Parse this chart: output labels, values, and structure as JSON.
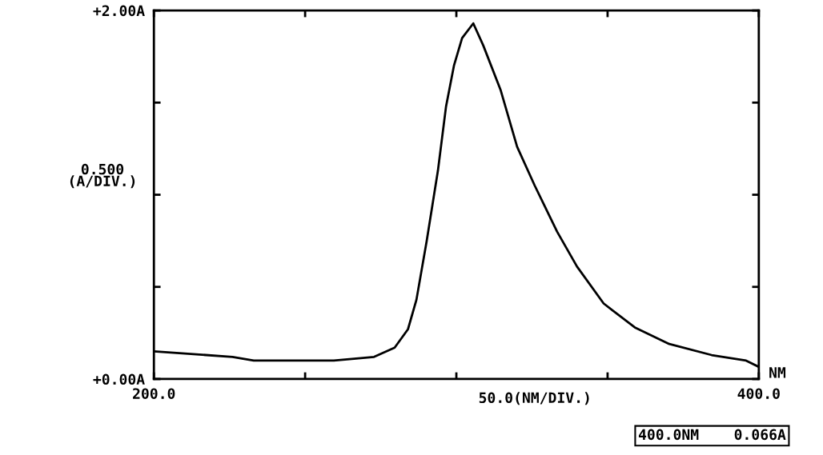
{
  "chart_data": {
    "type": "line",
    "xlabel": "50.0(NM/DIV.)",
    "ylabel": "0.500\n(A/DIV.)",
    "annotations": [
      "NM",
      "400.0NM    0.066A"
    ],
    "x": [
      200,
      226,
      233,
      259.5,
      272.8,
      279.6,
      284,
      286.8,
      290.2,
      293.9,
      296.6,
      299.2,
      301.9,
      305.6,
      308.9,
      314.6,
      320.1,
      325.9,
      333.3,
      339.9,
      348.7,
      359,
      370.4,
      384.4,
      395.8,
      400
    ],
    "series": [
      {
        "color": "#000000",
        "values": [
          0.15,
          0.12,
          0.1,
          0.1,
          0.12,
          0.17,
          0.27,
          0.43,
          0.75,
          1.13,
          1.48,
          1.7,
          1.85,
          1.93,
          1.81,
          1.57,
          1.26,
          1.05,
          0.8,
          0.61,
          0.41,
          0.28,
          0.19,
          0.13,
          0.1,
          0.066
        ]
      }
    ],
    "xlim": [
      200,
      400
    ],
    "xticks": [
      {
        "value": 200,
        "label": "200.0"
      },
      {
        "value": 250,
        "label": null
      },
      {
        "value": 300,
        "label": null
      },
      {
        "value": 350,
        "label": null
      },
      {
        "value": 400,
        "label": "400.0"
      }
    ],
    "ylim": [
      0,
      2
    ],
    "yticks": [
      {
        "value": 0,
        "label": "+0.00A"
      },
      {
        "value": 0.5,
        "label": null
      },
      {
        "value": 1,
        "label": null
      },
      {
        "value": 1.5,
        "label": null
      },
      {
        "value": 2,
        "label": "+2.00A"
      }
    ],
    "grid": false,
    "legend": false,
    "marker": "none",
    "line_style": "solid"
  }
}
